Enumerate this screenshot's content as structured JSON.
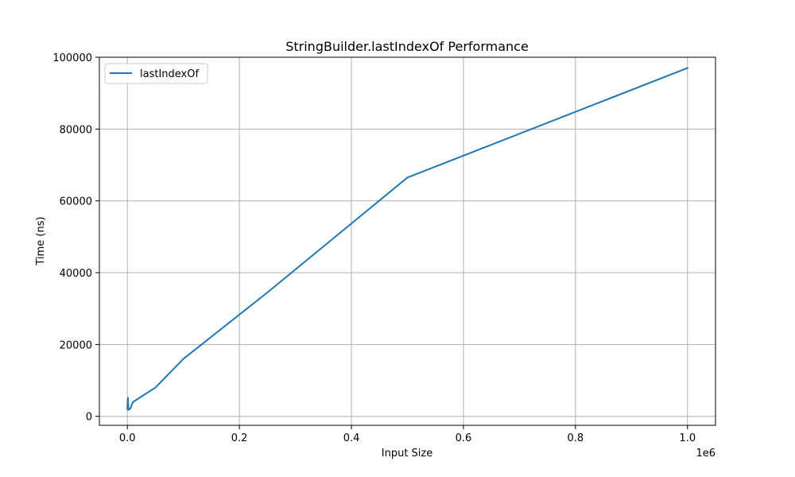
{
  "chart_data": {
    "type": "line",
    "title": "StringBuilder.lastIndexOf Performance",
    "xlabel": "Input Size",
    "ylabel": "Time (ns)",
    "x_offset_label": "1e6",
    "xlim": [
      -50000,
      1050000
    ],
    "ylim": [
      -2500,
      100000
    ],
    "xticks": [
      0,
      200000,
      400000,
      600000,
      800000,
      1000000
    ],
    "xtick_labels": [
      "0.0",
      "0.2",
      "0.4",
      "0.6",
      "0.8",
      "1.0"
    ],
    "yticks": [
      0,
      20000,
      40000,
      60000,
      80000,
      100000
    ],
    "ytick_labels": [
      "0",
      "20000",
      "40000",
      "60000",
      "80000",
      "100000"
    ],
    "grid": true,
    "legend_position": "top-left",
    "series": [
      {
        "name": "lastIndexOf",
        "color": "#1f77b4",
        "x": [
          10,
          50,
          100,
          500,
          1000,
          2000,
          5000,
          10000,
          50000,
          100000,
          250000,
          500000,
          1000000
        ],
        "y": [
          2000,
          2500,
          3200,
          4300,
          5200,
          1800,
          2100,
          4000,
          8000,
          16000,
          34500,
          66500,
          97000
        ]
      }
    ]
  }
}
